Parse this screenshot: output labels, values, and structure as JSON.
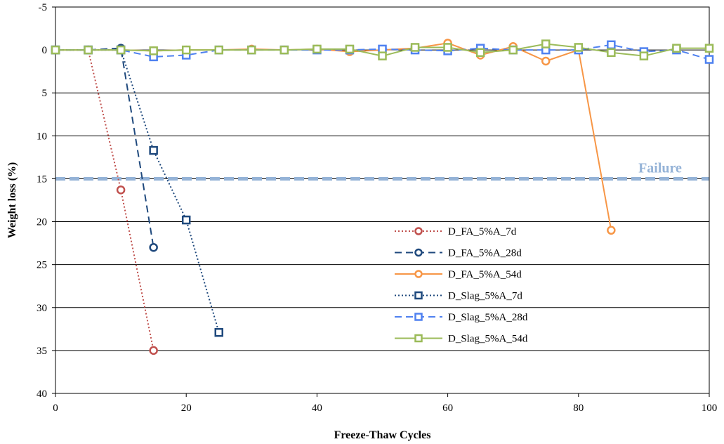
{
  "chart_data": {
    "type": "line",
    "title": "",
    "xlabel": "Freeze-Thaw Cycles",
    "ylabel": "Weight loss (%)",
    "xlim": [
      0,
      100
    ],
    "ylim": [
      -5,
      40
    ],
    "y_inverted": true,
    "x_ticks": [
      0,
      20,
      40,
      60,
      80,
      100
    ],
    "y_ticks": [
      -5,
      0,
      5,
      10,
      15,
      20,
      25,
      30,
      35,
      40
    ],
    "grid": "horizontal",
    "legend_position": "lower-right",
    "failure_line": {
      "y": 15,
      "label": "Failure",
      "color": "#95b3d7"
    },
    "series": [
      {
        "name": "D_FA_5%A_7d",
        "color": "#c0504d",
        "dash": "2,3",
        "marker": "circle",
        "x": [
          0,
          5,
          10,
          15
        ],
        "y": [
          0,
          0,
          16.3,
          35
        ]
      },
      {
        "name": "D_FA_5%A_28d",
        "color": "#1f497d",
        "dash": "10,6",
        "marker": "circle",
        "x": [
          0,
          5,
          10,
          15
        ],
        "y": [
          0,
          0,
          -0.2,
          23
        ]
      },
      {
        "name": "D_FA_5%A_54d",
        "color": "#f79646",
        "dash": "",
        "marker": "circle",
        "x": [
          0,
          5,
          10,
          15,
          20,
          25,
          30,
          35,
          40,
          45,
          50,
          55,
          60,
          65,
          70,
          75,
          80,
          85
        ],
        "y": [
          0,
          0,
          0,
          0.1,
          0,
          0,
          -0.1,
          0,
          -0.1,
          0.2,
          0,
          -0.2,
          -0.8,
          0.6,
          -0.4,
          1.3,
          0,
          21
        ]
      },
      {
        "name": "D_Slag_5%A_7d",
        "color": "#1f497d",
        "dash": "2,3",
        "marker": "square",
        "x": [
          0,
          5,
          10,
          15,
          20,
          25
        ],
        "y": [
          0,
          0,
          0,
          11.7,
          19.8,
          32.9
        ]
      },
      {
        "name": "D_Slag_5%A_28d",
        "color": "#4f81f0",
        "dash": "10,6",
        "marker": "square",
        "x": [
          0,
          5,
          10,
          15,
          20,
          25,
          30,
          35,
          40,
          45,
          50,
          55,
          60,
          65,
          70,
          75,
          80,
          85,
          90,
          95,
          100
        ],
        "y": [
          0,
          0,
          0,
          0.8,
          0.6,
          0,
          0,
          0,
          0,
          0,
          -0.1,
          0,
          0.1,
          -0.2,
          0,
          0,
          0,
          -0.6,
          0.2,
          0,
          1.1
        ]
      },
      {
        "name": "D_Slag_5%A_54d",
        "color": "#9bbb59",
        "dash": "",
        "marker": "square",
        "x": [
          0,
          5,
          10,
          15,
          20,
          25,
          30,
          35,
          40,
          45,
          50,
          55,
          60,
          65,
          70,
          75,
          80,
          85,
          90,
          95,
          100
        ],
        "y": [
          0,
          0,
          0,
          0.1,
          0,
          0,
          0,
          0,
          -0.1,
          -0.1,
          0.7,
          -0.3,
          -0.3,
          0.3,
          0,
          -0.7,
          -0.3,
          0.3,
          0.7,
          -0.2,
          -0.2
        ]
      }
    ]
  }
}
